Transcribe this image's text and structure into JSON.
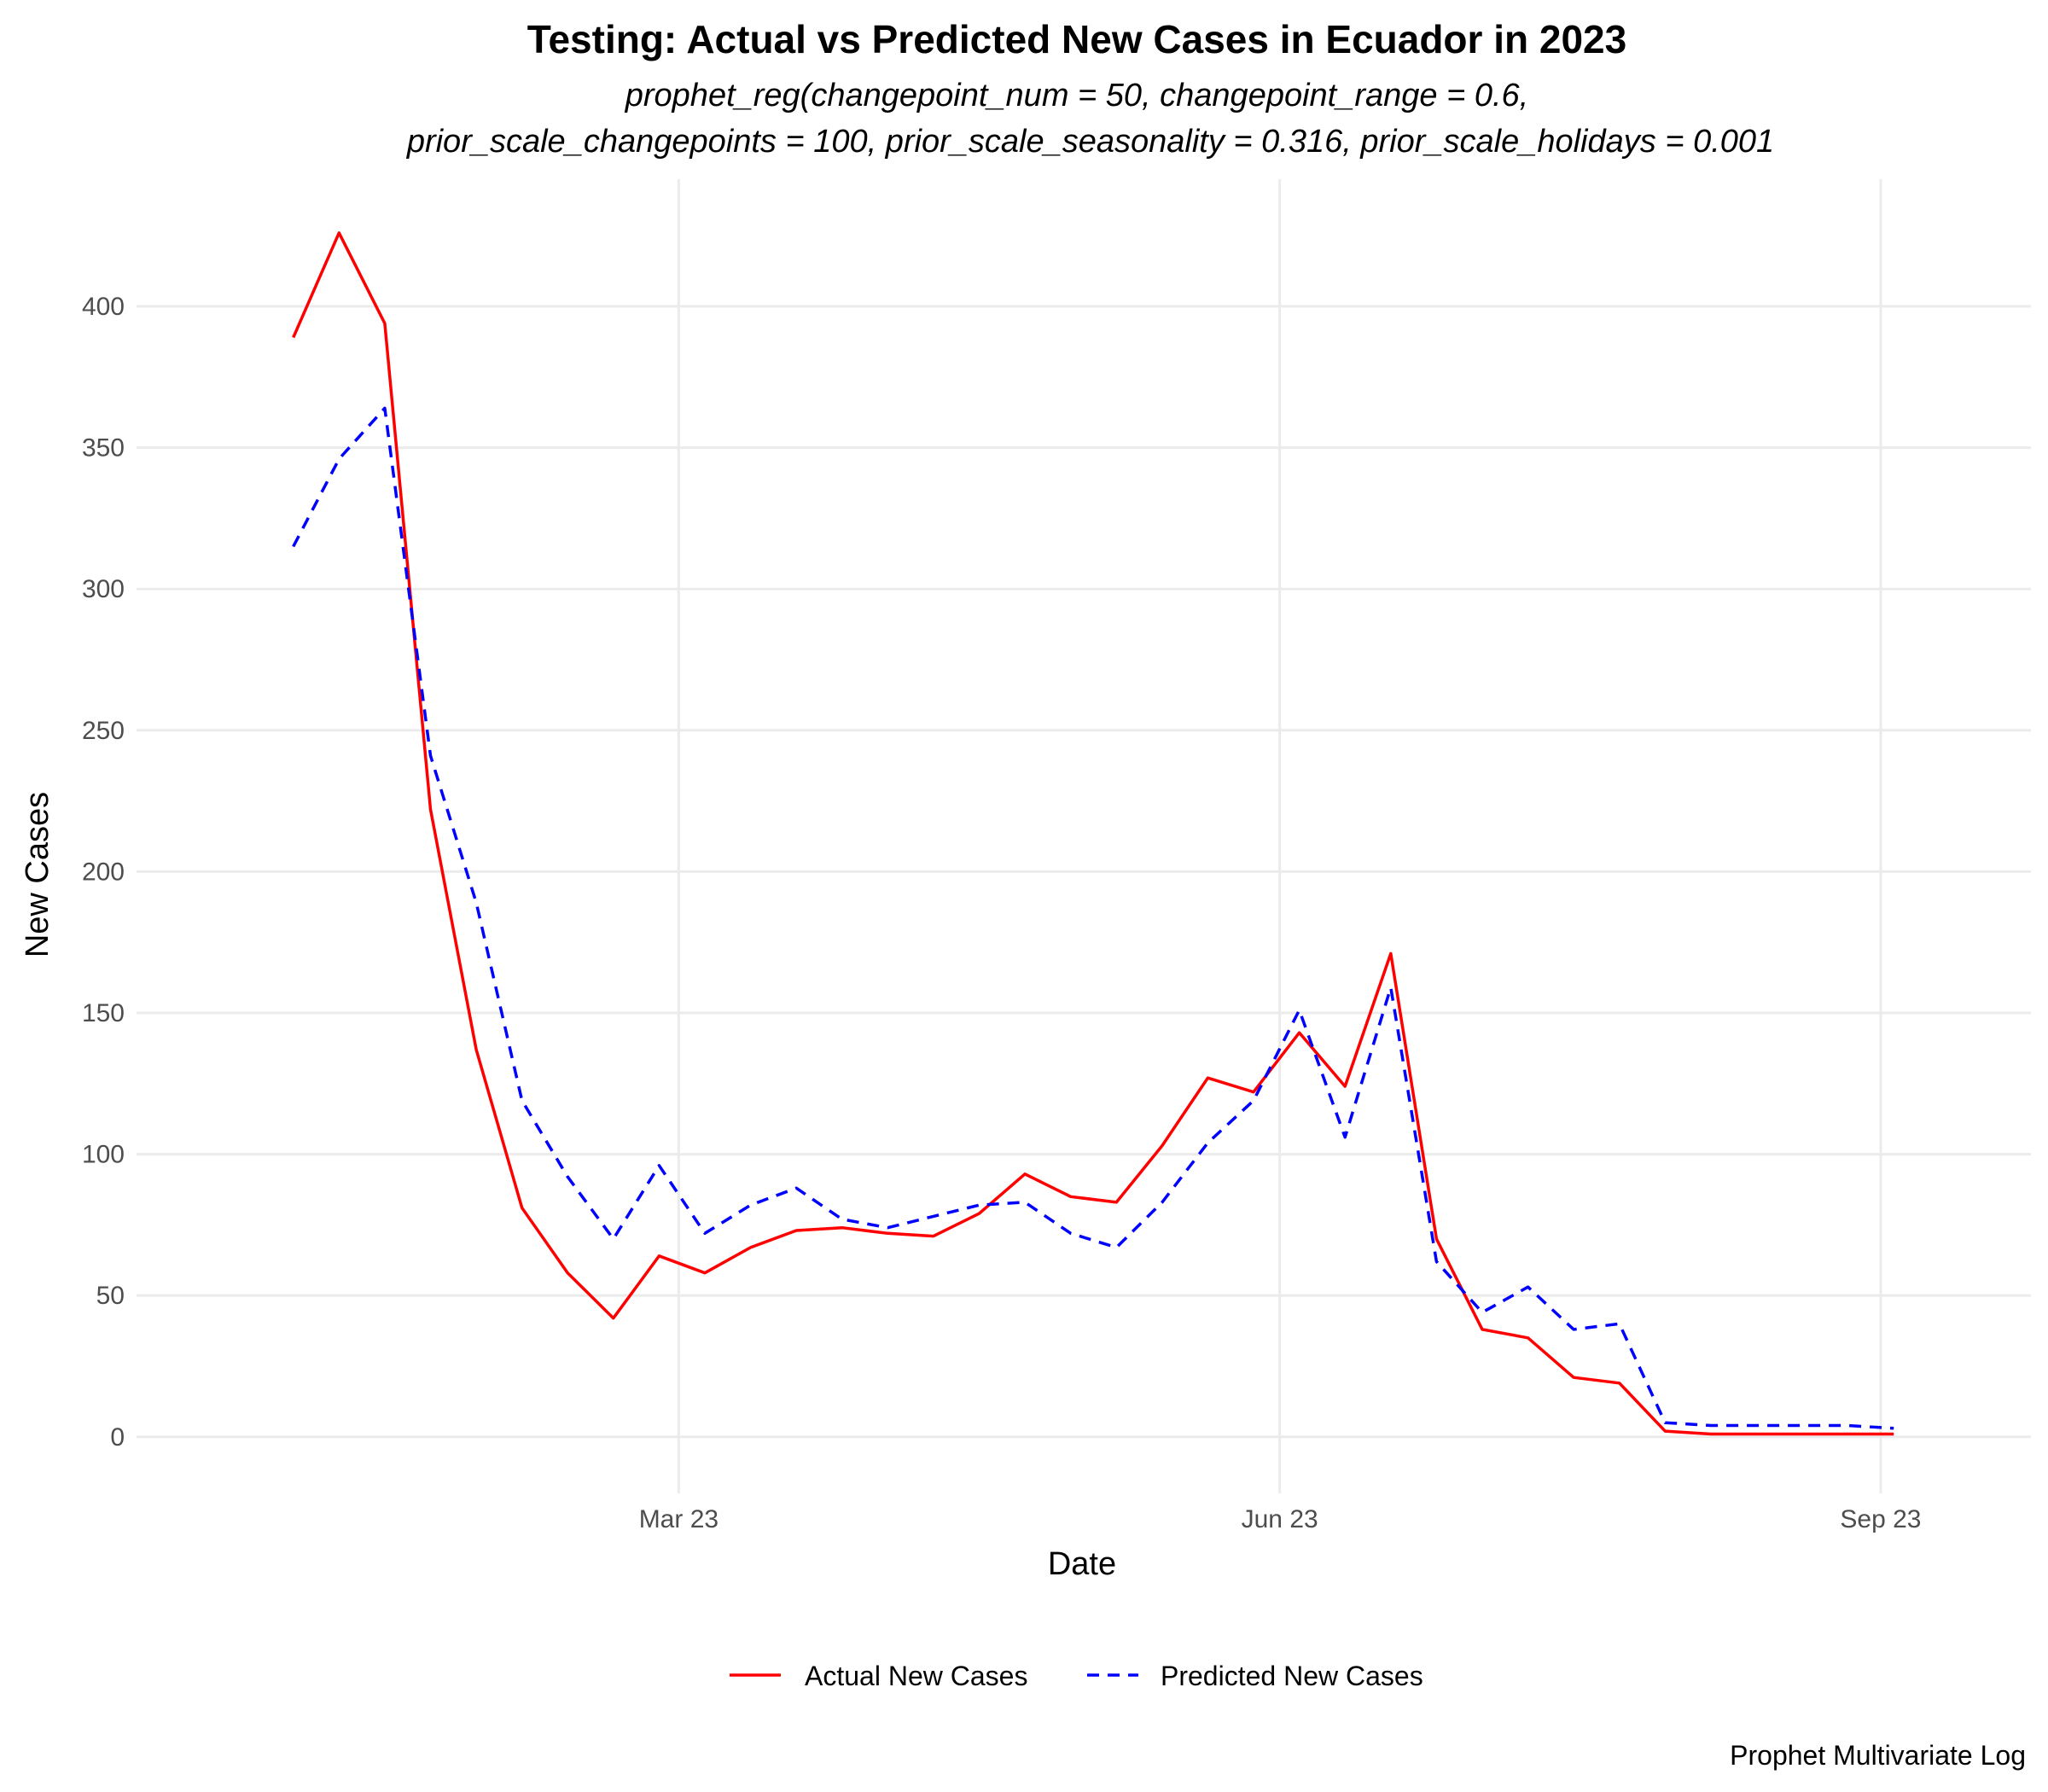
{
  "chart_data": {
    "type": "line",
    "title": "Testing: Actual vs Predicted New Cases in Ecuador in 2023",
    "subtitle_lines": [
      "prophet_reg(changepoint_num = 50, changepoint_range = 0.6,",
      "prior_scale_changepoints = 100, prior_scale_seasonality = 0.316, prior_scale_holidays = 0.001"
    ],
    "xlabel": "Date",
    "ylabel": "New Cases",
    "caption": "Prophet Multivariate Log",
    "x_ticks": [
      {
        "date": "2023-03-01",
        "label": "Mar 23"
      },
      {
        "date": "2023-06-01",
        "label": "Jun 23"
      },
      {
        "date": "2023-09-01",
        "label": "Sep 23"
      }
    ],
    "y_ticks": [
      0,
      50,
      100,
      150,
      200,
      250,
      300,
      350,
      400
    ],
    "xlim": [
      "2022-12-08",
      "2023-09-24"
    ],
    "ylim": [
      -20,
      445
    ],
    "grid": true,
    "legend_position": "bottom",
    "x": [
      "2023-01-01",
      "2023-01-08",
      "2023-01-15",
      "2023-01-22",
      "2023-01-29",
      "2023-02-05",
      "2023-02-12",
      "2023-02-19",
      "2023-02-26",
      "2023-03-05",
      "2023-03-12",
      "2023-03-19",
      "2023-03-26",
      "2023-04-02",
      "2023-04-09",
      "2023-04-16",
      "2023-04-23",
      "2023-04-30",
      "2023-05-07",
      "2023-05-14",
      "2023-05-21",
      "2023-05-28",
      "2023-06-04",
      "2023-06-11",
      "2023-06-18",
      "2023-06-25",
      "2023-07-02",
      "2023-07-09",
      "2023-07-16",
      "2023-07-23",
      "2023-07-30",
      "2023-08-06",
      "2023-08-13",
      "2023-08-20",
      "2023-08-27",
      "2023-09-03"
    ],
    "series": [
      {
        "name": "Actual New Cases",
        "color": "#ff0000",
        "dash": "solid",
        "values": [
          389,
          426,
          394,
          222,
          137,
          81,
          58,
          42,
          64,
          58,
          67,
          73,
          74,
          72,
          71,
          79,
          93,
          85,
          83,
          103,
          127,
          122,
          143,
          124,
          171,
          70,
          38,
          35,
          21,
          19,
          2,
          1,
          1,
          1,
          1,
          1
        ]
      },
      {
        "name": "Predicted New Cases",
        "color": "#0000ff",
        "dash": "dashed",
        "values": [
          315,
          346,
          364,
          241,
          189,
          119,
          92,
          70,
          96,
          72,
          82,
          88,
          77,
          74,
          78,
          82,
          83,
          72,
          67,
          83,
          104,
          119,
          151,
          106,
          159,
          62,
          44,
          53,
          38,
          40,
          5,
          4,
          4,
          4,
          4,
          3
        ]
      }
    ]
  }
}
